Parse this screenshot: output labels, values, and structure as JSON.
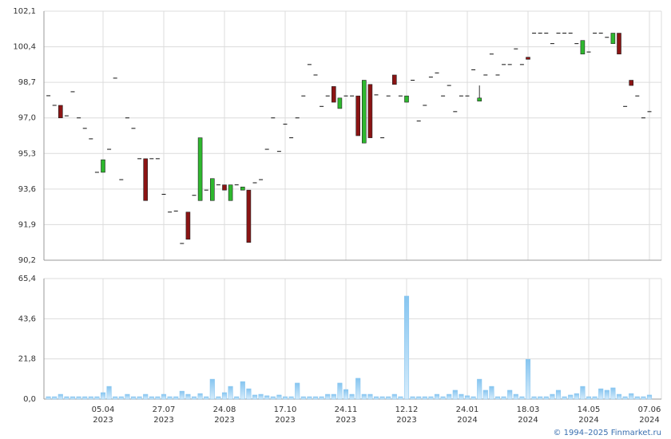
{
  "chart_data": [
    {
      "type": "candlestick",
      "up_color": "#2eb82e",
      "down_color": "#8b1414",
      "grid": true,
      "categories": [
        null,
        null,
        null,
        null,
        null,
        null,
        null,
        null,
        null,
        "05.04",
        null,
        null,
        null,
        null,
        null,
        null,
        null,
        null,
        null,
        "27.07",
        null,
        null,
        null,
        null,
        null,
        null,
        null,
        null,
        null,
        "24.08",
        null,
        null,
        null,
        null,
        null,
        null,
        null,
        null,
        null,
        "17.10",
        null,
        null,
        null,
        null,
        null,
        null,
        null,
        null,
        null,
        "24.11",
        null,
        null,
        null,
        null,
        null,
        null,
        null,
        null,
        null,
        "12.12",
        null,
        null,
        null,
        null,
        null,
        null,
        null,
        null,
        null,
        "24.01",
        null,
        null,
        null,
        null,
        null,
        null,
        null,
        null,
        null,
        "18.03",
        null,
        null,
        null,
        null,
        null,
        null,
        null,
        null,
        null,
        "14.05",
        null,
        null,
        null,
        null,
        null,
        null,
        null,
        null,
        null,
        "07.06"
      ],
      "category_years": [
        null,
        null,
        null,
        null,
        null,
        null,
        null,
        null,
        null,
        "2023",
        null,
        null,
        null,
        null,
        null,
        null,
        null,
        null,
        null,
        "2023",
        null,
        null,
        null,
        null,
        null,
        null,
        null,
        null,
        null,
        "2023",
        null,
        null,
        null,
        null,
        null,
        null,
        null,
        null,
        null,
        "2023",
        null,
        null,
        null,
        null,
        null,
        null,
        null,
        null,
        null,
        "2023",
        null,
        null,
        null,
        null,
        null,
        null,
        null,
        null,
        null,
        "2023",
        null,
        null,
        null,
        null,
        null,
        null,
        null,
        null,
        null,
        "2024",
        null,
        null,
        null,
        null,
        null,
        null,
        null,
        null,
        null,
        "2024",
        null,
        null,
        null,
        null,
        null,
        null,
        null,
        null,
        null,
        "2024",
        null,
        null,
        null,
        null,
        null,
        null,
        null,
        null,
        null,
        "2024"
      ],
      "open": [
        98.06,
        97.6,
        97.6,
        97.1,
        98.25,
        97.0,
        96.5,
        96.0,
        94.4,
        94.4,
        95.5,
        98.9,
        94.05,
        97.0,
        96.5,
        95.05,
        95.05,
        95.05,
        95.05,
        93.35,
        92.5,
        92.55,
        91.0,
        92.5,
        93.3,
        93.05,
        93.55,
        93.05,
        93.8,
        93.8,
        93.05,
        93.8,
        93.55,
        93.55,
        93.9,
        94.05,
        95.5,
        97.0,
        95.4,
        96.7,
        96.05,
        97.0,
        98.05,
        99.55,
        99.05,
        97.55,
        98.05,
        98.5,
        97.45,
        98.05,
        98.05,
        98.05,
        95.8,
        98.6,
        98.1,
        96.05,
        98.05,
        99.05,
        98.05,
        97.75,
        98.8,
        96.85,
        97.6,
        98.95,
        99.15,
        98.05,
        98.55,
        97.3,
        98.05,
        98.05,
        99.3,
        97.8,
        99.05,
        100.05,
        99.05,
        99.55,
        99.55,
        100.3,
        99.55,
        99.9,
        101.05,
        101.05,
        101.05,
        100.55,
        101.05,
        101.05,
        101.05,
        100.55,
        100.05,
        100.15,
        101.05,
        101.05,
        100.85,
        100.55,
        101.05,
        97.55,
        98.8,
        98.05,
        97.0,
        97.3
      ],
      "high": [
        98.06,
        97.6,
        97.6,
        97.1,
        98.25,
        97.0,
        96.5,
        96.0,
        94.4,
        95.0,
        95.5,
        98.9,
        94.05,
        97.0,
        96.5,
        95.05,
        95.05,
        95.05,
        95.05,
        93.35,
        92.5,
        92.55,
        91.0,
        92.5,
        93.3,
        96.05,
        93.55,
        94.1,
        93.8,
        93.8,
        93.8,
        93.8,
        93.7,
        93.55,
        93.9,
        94.05,
        95.5,
        97.0,
        95.4,
        96.7,
        96.05,
        97.0,
        98.05,
        99.55,
        99.05,
        97.55,
        98.05,
        98.5,
        97.95,
        98.05,
        98.05,
        98.05,
        98.8,
        98.6,
        98.1,
        96.05,
        98.05,
        99.05,
        98.05,
        98.05,
        98.8,
        96.85,
        97.6,
        98.95,
        99.15,
        98.05,
        98.55,
        97.3,
        98.05,
        98.05,
        99.3,
        98.55,
        99.05,
        100.05,
        99.05,
        99.55,
        99.55,
        100.3,
        99.55,
        99.9,
        101.05,
        101.05,
        101.05,
        100.55,
        101.05,
        101.05,
        101.05,
        100.55,
        100.7,
        100.15,
        101.05,
        101.05,
        100.85,
        101.05,
        101.05,
        97.55,
        98.8,
        98.05,
        97.0,
        97.3
      ],
      "low": [
        98.06,
        97.6,
        97.0,
        97.1,
        98.25,
        97.0,
        96.5,
        96.0,
        94.4,
        94.4,
        95.5,
        98.9,
        94.05,
        97.0,
        96.5,
        95.05,
        93.05,
        95.05,
        95.05,
        93.35,
        92.5,
        92.55,
        91.0,
        91.2,
        93.3,
        93.05,
        93.55,
        93.05,
        93.8,
        93.55,
        93.05,
        93.8,
        93.55,
        91.05,
        93.9,
        94.05,
        95.5,
        97.0,
        95.4,
        96.7,
        96.05,
        97.0,
        98.05,
        99.55,
        99.05,
        97.55,
        98.05,
        97.75,
        97.45,
        98.05,
        98.05,
        96.15,
        95.8,
        96.05,
        98.1,
        96.05,
        98.05,
        98.6,
        98.05,
        97.75,
        98.8,
        96.85,
        97.6,
        98.95,
        99.15,
        98.05,
        98.55,
        97.3,
        98.05,
        98.05,
        99.3,
        97.8,
        99.05,
        100.05,
        99.05,
        99.55,
        99.55,
        100.3,
        99.55,
        99.8,
        101.05,
        101.05,
        101.05,
        100.55,
        101.05,
        101.05,
        101.05,
        100.55,
        100.05,
        100.15,
        101.05,
        101.05,
        100.85,
        100.55,
        100.05,
        97.55,
        98.55,
        98.05,
        97.0,
        97.3
      ],
      "close": [
        98.06,
        97.6,
        97.0,
        97.1,
        98.25,
        97.0,
        96.5,
        96.0,
        94.4,
        95.0,
        95.5,
        98.9,
        94.05,
        97.0,
        96.5,
        95.05,
        93.05,
        95.05,
        95.05,
        93.35,
        92.5,
        92.55,
        91.0,
        91.2,
        93.3,
        96.05,
        93.55,
        94.1,
        93.8,
        93.55,
        93.8,
        93.8,
        93.7,
        91.05,
        93.9,
        94.05,
        95.5,
        97.0,
        95.4,
        96.7,
        96.05,
        97.0,
        98.05,
        99.55,
        99.05,
        97.55,
        98.05,
        97.75,
        97.95,
        98.05,
        98.05,
        96.15,
        98.8,
        96.05,
        98.1,
        96.05,
        98.05,
        98.6,
        98.05,
        98.05,
        98.8,
        96.85,
        97.6,
        98.95,
        99.15,
        98.05,
        98.55,
        97.3,
        98.05,
        98.05,
        99.3,
        97.95,
        99.05,
        100.05,
        99.05,
        99.55,
        99.55,
        100.3,
        99.55,
        99.8,
        101.05,
        101.05,
        101.05,
        100.55,
        101.05,
        101.05,
        101.05,
        100.55,
        100.7,
        100.15,
        101.05,
        101.05,
        100.85,
        101.05,
        100.05,
        97.55,
        98.55,
        98.05,
        97.0,
        97.3
      ],
      "ylim": [
        90.2,
        102.1
      ],
      "yticks": [
        {
          "value": 90.2,
          "label": "90,2"
        },
        {
          "value": 91.9,
          "label": "91,9"
        },
        {
          "value": 93.6,
          "label": "93,6"
        },
        {
          "value": 95.3,
          "label": "95,3"
        },
        {
          "value": 97.0,
          "label": "97,0"
        },
        {
          "value": 98.7,
          "label": "98,7"
        },
        {
          "value": 100.4,
          "label": "100,4"
        },
        {
          "value": 102.1,
          "label": "102,1"
        }
      ]
    },
    {
      "type": "bar",
      "color": "#86c5f0",
      "grid": true,
      "values": [
        1.3,
        1.3,
        2.6,
        1.3,
        1.3,
        1.3,
        1.3,
        1.3,
        1.3,
        3.5,
        6.9,
        1.3,
        1.3,
        2.6,
        1.3,
        1.3,
        2.6,
        1.3,
        1.3,
        2.6,
        1.3,
        1.3,
        4.3,
        2.6,
        1.3,
        3.0,
        1.3,
        10.8,
        1.3,
        3.5,
        6.9,
        1.3,
        9.5,
        5.6,
        2.2,
        2.6,
        1.8,
        1.3,
        2.2,
        1.3,
        1.3,
        8.7,
        1.3,
        1.3,
        1.3,
        1.3,
        2.6,
        2.6,
        8.7,
        5.2,
        2.6,
        11.3,
        2.6,
        2.6,
        1.3,
        1.3,
        1.3,
        2.6,
        1.3,
        55.9,
        1.3,
        1.3,
        1.3,
        1.3,
        2.6,
        1.3,
        2.6,
        4.8,
        2.6,
        1.8,
        1.3,
        10.8,
        4.8,
        6.9,
        1.3,
        1.3,
        4.8,
        2.6,
        1.3,
        21.6,
        1.3,
        1.3,
        1.3,
        2.6,
        4.8,
        1.3,
        2.2,
        3.0,
        6.9,
        1.3,
        1.3,
        5.6,
        4.8,
        6.1,
        2.6,
        1.3,
        3.0,
        1.3,
        1.3,
        2.2
      ],
      "ylim": [
        0,
        65.4
      ],
      "yticks": [
        {
          "value": 0,
          "label": "0,0"
        },
        {
          "value": 21.8,
          "label": "21,8"
        },
        {
          "value": 43.6,
          "label": "43,6"
        },
        {
          "value": 65.4,
          "label": "65,4"
        }
      ]
    }
  ],
  "footer": "© 1994–2025 Finmarket.ru"
}
